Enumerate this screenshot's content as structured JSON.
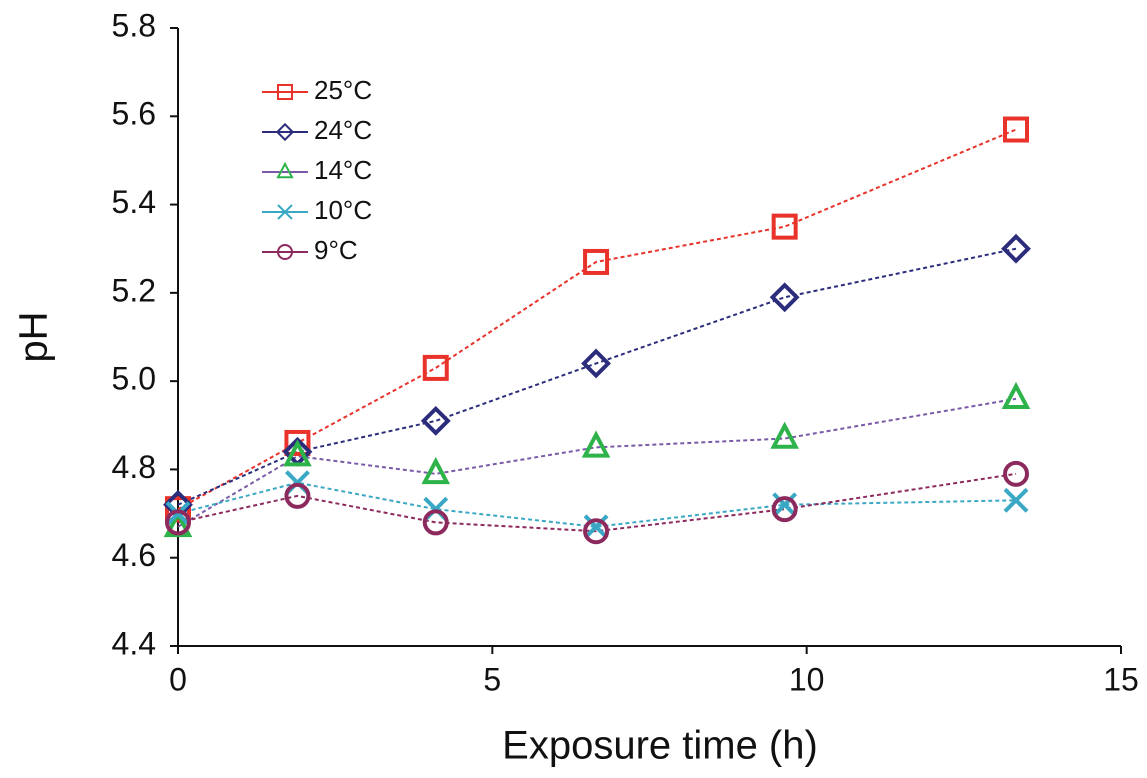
{
  "chart_data": {
    "type": "line",
    "x_label": "Exposure time (h)",
    "y_label": "pH",
    "x": [
      0,
      1.9,
      4.1,
      6.65,
      9.65,
      13.33
    ],
    "xlim": [
      0,
      15
    ],
    "xticks": [
      0,
      5,
      10,
      15
    ],
    "ylim": [
      4.4,
      5.8
    ],
    "yticks": [
      4.4,
      4.6,
      4.8,
      {
        "value": 5,
        "label": "5.0"
      },
      5.2,
      5.4,
      5.6,
      5.8
    ],
    "grid": false,
    "legend": "upper left",
    "series": [
      {
        "name": "25°C",
        "color": "#e8322a",
        "line_color": "#e8322a",
        "marker": "square",
        "values": [
          4.71,
          4.86,
          5.03,
          5.27,
          5.35,
          5.57
        ]
      },
      {
        "name": "24°C",
        "color": "#2b2d7c",
        "line_color": "#2b2d7c",
        "marker": "diamond",
        "values": [
          4.72,
          4.84,
          4.91,
          5.04,
          5.19,
          5.3
        ]
      },
      {
        "name": "14°C",
        "color": "#2db34a",
        "line_color": "#7a5aa8",
        "marker": "triangle",
        "values": [
          4.67,
          4.83,
          4.79,
          4.85,
          4.87,
          4.96
        ]
      },
      {
        "name": "10°C",
        "color": "#3aa8c4",
        "line_color": "#3aa8c4",
        "marker": "x",
        "values": [
          4.7,
          4.77,
          4.71,
          4.67,
          4.72,
          4.73
        ]
      },
      {
        "name": "9°C",
        "color": "#8c2a5e",
        "line_color": "#8c2a5e",
        "marker": "circle",
        "values": [
          4.68,
          4.74,
          4.68,
          4.66,
          4.71,
          4.79
        ]
      }
    ]
  }
}
